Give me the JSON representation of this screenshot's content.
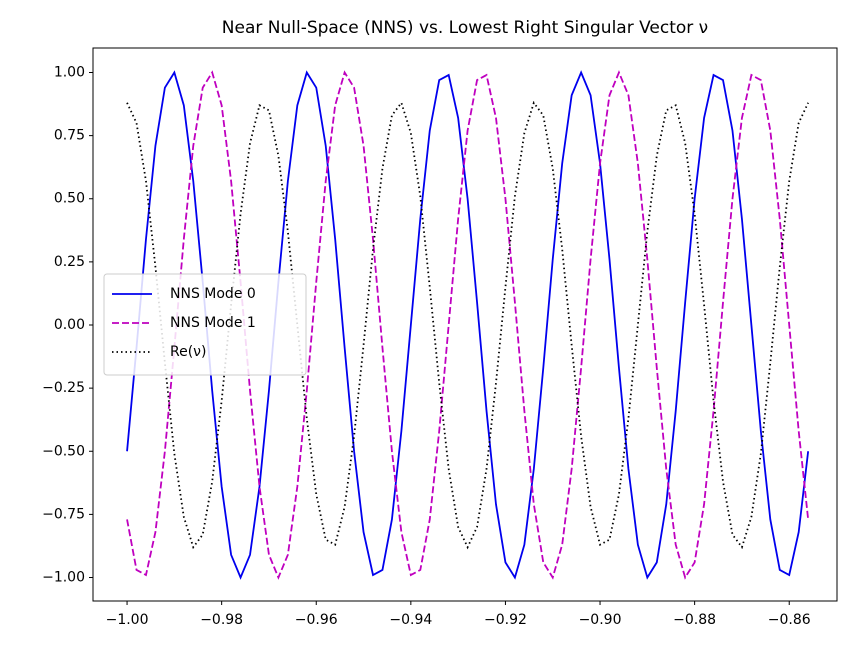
{
  "chart_data": {
    "type": "line",
    "title": "Near Null-Space (NNS) vs. Lowest Right Singular Vector ν",
    "x": [
      -1.0,
      -0.998,
      -0.996,
      -0.994,
      -0.992,
      -0.99,
      -0.988,
      -0.986,
      -0.984,
      -0.982,
      -0.98,
      -0.978,
      -0.976,
      -0.974,
      -0.972,
      -0.97,
      -0.968,
      -0.966,
      -0.964,
      -0.962,
      -0.96,
      -0.958,
      -0.956,
      -0.954,
      -0.952,
      -0.95,
      -0.948,
      -0.946,
      -0.944,
      -0.942,
      -0.94,
      -0.938,
      -0.936,
      -0.934,
      -0.932,
      -0.93,
      -0.928,
      -0.926,
      -0.924,
      -0.922,
      -0.92,
      -0.918,
      -0.916,
      -0.914,
      -0.912,
      -0.91,
      -0.908,
      -0.906,
      -0.904,
      -0.902,
      -0.9,
      -0.898,
      -0.896,
      -0.894,
      -0.892,
      -0.89,
      -0.888,
      -0.886,
      -0.884,
      -0.882,
      -0.88,
      -0.878,
      -0.876,
      -0.874,
      -0.872,
      -0.87,
      -0.868,
      -0.866,
      -0.864,
      -0.862,
      -0.86,
      -0.858,
      -0.856
    ],
    "series": [
      {
        "name": "NNS Mode 0",
        "color": "#0000ee",
        "dash": "solid",
        "values": [
          -0.5,
          -0.09,
          0.34,
          0.71,
          0.94,
          1.0,
          0.87,
          0.57,
          0.17,
          -0.26,
          -0.64,
          -0.91,
          -1.0,
          -0.91,
          -0.64,
          -0.26,
          0.17,
          0.57,
          0.87,
          1.0,
          0.94,
          0.71,
          0.34,
          -0.09,
          -0.5,
          -0.82,
          -0.99,
          -0.97,
          -0.77,
          -0.42,
          0,
          0.42,
          0.77,
          0.97,
          0.99,
          0.82,
          0.5,
          0.09,
          -0.34,
          -0.71,
          -0.94,
          -1.0,
          -0.87,
          -0.57,
          -0.17,
          0.26,
          0.64,
          0.91,
          1.0,
          0.91,
          0.64,
          0.26,
          -0.17,
          -0.57,
          -0.87,
          -1.0,
          -0.94,
          -0.71,
          -0.34,
          0.09,
          0.5,
          0.82,
          0.99,
          0.97,
          0.77,
          0.42,
          0,
          -0.42,
          -0.77,
          -0.97,
          -0.99,
          -0.82,
          -0.5
        ]
      },
      {
        "name": "NNS Mode 1",
        "color": "#bf00bf",
        "dash": "dashed",
        "values": [
          -0.77,
          -0.97,
          -0.99,
          -0.82,
          -0.5,
          -0.09,
          0.34,
          0.71,
          0.94,
          1.0,
          0.87,
          0.57,
          0.17,
          -0.26,
          -0.64,
          -0.91,
          -1.0,
          -0.91,
          -0.64,
          -0.26,
          0.17,
          0.57,
          0.87,
          1.0,
          0.94,
          0.71,
          0.34,
          -0.09,
          -0.5,
          -0.82,
          -0.99,
          -0.97,
          -0.77,
          -0.42,
          0,
          0.42,
          0.77,
          0.97,
          0.99,
          0.82,
          0.5,
          0.09,
          -0.34,
          -0.71,
          -0.94,
          -1.0,
          -0.87,
          -0.57,
          -0.17,
          0.26,
          0.64,
          0.91,
          1.0,
          0.91,
          0.64,
          0.26,
          -0.17,
          -0.57,
          -0.87,
          -1.0,
          -0.94,
          -0.71,
          -0.34,
          0.09,
          0.5,
          0.82,
          0.99,
          0.97,
          0.77,
          0.42,
          0,
          -0.42,
          -0.77
        ]
      },
      {
        "name": "Re(ν)",
        "color": "#000000",
        "dash": "dotted",
        "values": [
          0.88,
          0.8,
          0.57,
          0.23,
          -0.15,
          -0.51,
          -0.76,
          -0.88,
          -0.83,
          -0.62,
          -0.3,
          0.08,
          0.44,
          0.72,
          0.87,
          0.85,
          0.67,
          0.37,
          0,
          -0.37,
          -0.67,
          -0.85,
          -0.87,
          -0.72,
          -0.44,
          -0.08,
          0.3,
          0.62,
          0.83,
          0.88,
          0.76,
          0.51,
          0.15,
          -0.23,
          -0.57,
          -0.8,
          -0.88,
          -0.8,
          -0.57,
          -0.23,
          0.15,
          0.51,
          0.76,
          0.88,
          0.83,
          0.62,
          0.3,
          -0.08,
          -0.44,
          -0.72,
          -0.87,
          -0.85,
          -0.67,
          -0.37,
          0,
          0.37,
          0.67,
          0.85,
          0.87,
          0.72,
          0.44,
          0.08,
          -0.3,
          -0.62,
          -0.83,
          -0.88,
          -0.76,
          -0.51,
          -0.15,
          0.23,
          0.57,
          0.8,
          0.88
        ]
      }
    ],
    "xlim": [
      -1.0072,
      -0.8499
    ],
    "ylim": [
      -1.093,
      1.097
    ],
    "xticks": [
      {
        "value": -1.0,
        "label": "−1.00"
      },
      {
        "value": -0.98,
        "label": "−0.98"
      },
      {
        "value": -0.96,
        "label": "−0.96"
      },
      {
        "value": -0.94,
        "label": "−0.94"
      },
      {
        "value": -0.92,
        "label": "−0.92"
      },
      {
        "value": -0.9,
        "label": "−0.90"
      },
      {
        "value": -0.88,
        "label": "−0.88"
      },
      {
        "value": -0.86,
        "label": "−0.86"
      }
    ],
    "yticks": [
      {
        "value": -1.0,
        "label": "−1.00"
      },
      {
        "value": -0.75,
        "label": "−0.75"
      },
      {
        "value": -0.5,
        "label": "−0.50"
      },
      {
        "value": -0.25,
        "label": "−0.25"
      },
      {
        "value": 0,
        "label": "0.00"
      },
      {
        "value": 0.25,
        "label": "0.25"
      },
      {
        "value": 0.5,
        "label": "0.50"
      },
      {
        "value": 0.75,
        "label": "0.75"
      },
      {
        "value": 1.0,
        "label": "1.00"
      }
    ],
    "grid": false,
    "legend": "center left"
  }
}
